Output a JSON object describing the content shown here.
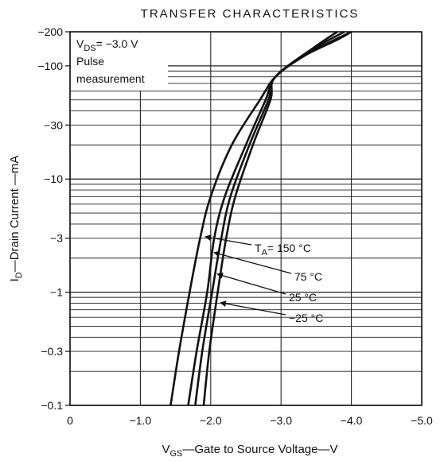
{
  "chart_data": {
    "type": "line",
    "title": "TRANSFER CHARACTERISTICS",
    "xlabel": {
      "main": "V",
      "sub": "GS",
      "rest": "—Gate to Source Voltage—V"
    },
    "ylabel": {
      "main": "I",
      "sub": "D",
      "rest": "—Drain Current —mA"
    },
    "x_ticks": [
      {
        "value": 0,
        "label": "0"
      },
      {
        "value": -1.0,
        "label": "−1.0"
      },
      {
        "value": -2.0,
        "label": "−2.0"
      },
      {
        "value": -3.0,
        "label": "−3.0"
      },
      {
        "value": -4.0,
        "label": "−4.0"
      },
      {
        "value": -5.0,
        "label": "−5.0"
      }
    ],
    "y_ticks": [
      {
        "value": -0.1,
        "label": "−0.1"
      },
      {
        "value": -0.3,
        "label": "−0.3"
      },
      {
        "value": -1,
        "label": "−1"
      },
      {
        "value": -3,
        "label": "−3"
      },
      {
        "value": -10,
        "label": "−10"
      },
      {
        "value": -30,
        "label": "−30"
      },
      {
        "value": -100,
        "label": "−100"
      },
      {
        "value": -200,
        "label": "−200"
      }
    ],
    "xlim": [
      0,
      -5.0
    ],
    "ylim": [
      -0.1,
      -200
    ],
    "y_scale": "log",
    "grid": true,
    "conditions": {
      "line1_main": "V",
      "line1_sub": "DS",
      "line1_rest": "= −3.0 V",
      "line2": "Pulse",
      "line3": "measurement"
    },
    "series": [
      {
        "name": "150 °C",
        "label_prefix": "T",
        "label_sub": "A",
        "label_rest": "= 150 °C",
        "points": [
          [
            -1.43,
            -0.1
          ],
          [
            -1.55,
            -0.3
          ],
          [
            -1.7,
            -1
          ],
          [
            -1.85,
            -3
          ],
          [
            -2.0,
            -7
          ],
          [
            -2.3,
            -20
          ],
          [
            -2.7,
            -50
          ],
          [
            -2.92,
            -80
          ],
          [
            -3.3,
            -120
          ],
          [
            -3.8,
            -170
          ],
          [
            -4.0,
            -200
          ]
        ]
      },
      {
        "name": "75 °C",
        "label_prefix": "",
        "label_sub": "",
        "label_rest": "75 °C",
        "points": [
          [
            -1.68,
            -0.1
          ],
          [
            -1.8,
            -0.3
          ],
          [
            -1.95,
            -1
          ],
          [
            -2.05,
            -3
          ],
          [
            -2.2,
            -7
          ],
          [
            -2.5,
            -20
          ],
          [
            -2.78,
            -50
          ],
          [
            -2.92,
            -80
          ],
          [
            -3.4,
            -130
          ],
          [
            -4.0,
            -200
          ]
        ]
      },
      {
        "name": "25 °C",
        "label_prefix": "",
        "label_sub": "",
        "label_rest": "25 °C",
        "points": [
          [
            -1.78,
            -0.1
          ],
          [
            -1.88,
            -0.3
          ],
          [
            -2.02,
            -1
          ],
          [
            -2.15,
            -3
          ],
          [
            -2.28,
            -7
          ],
          [
            -2.55,
            -20
          ],
          [
            -2.82,
            -50
          ],
          [
            -2.92,
            -80
          ],
          [
            -3.45,
            -140
          ],
          [
            -3.9,
            -200
          ]
        ]
      },
      {
        "name": "−25 °C",
        "label_prefix": "",
        "label_sub": "",
        "label_rest": "−25 °C",
        "points": [
          [
            -1.9,
            -0.1
          ],
          [
            -1.98,
            -0.3
          ],
          [
            -2.1,
            -1
          ],
          [
            -2.22,
            -3
          ],
          [
            -2.35,
            -7
          ],
          [
            -2.6,
            -20
          ],
          [
            -2.85,
            -50
          ],
          [
            -2.92,
            -80
          ],
          [
            -3.5,
            -150
          ],
          [
            -3.8,
            -200
          ]
        ]
      }
    ]
  }
}
